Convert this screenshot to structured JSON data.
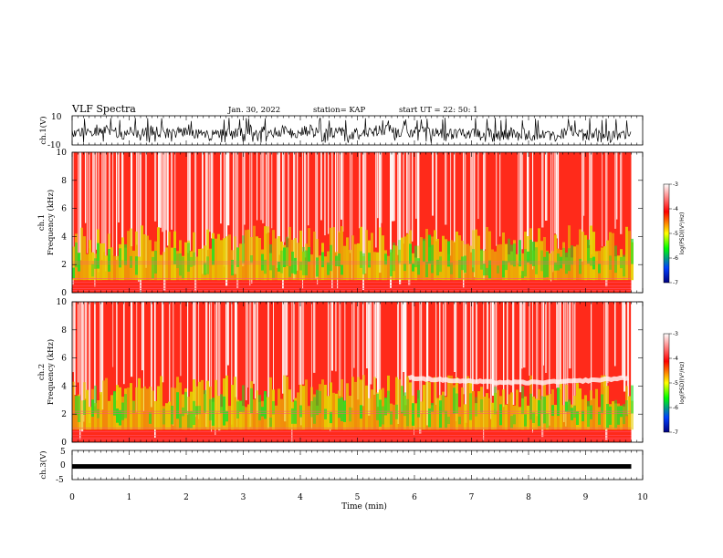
{
  "header": {
    "title": "VLF Spectra",
    "date": "Jan. 30, 2022",
    "station": "station= KAP",
    "start": "start  UT =   22: 50: 1"
  },
  "chart_data": [
    {
      "type": "line",
      "name": "ch1-waveform",
      "ylabel": "ch.1(V)",
      "ylim": [
        -10,
        10
      ],
      "yticks": [
        "10",
        "-10"
      ],
      "xlim": [
        0,
        10
      ]
    },
    {
      "type": "heatmap",
      "name": "ch1-spectrogram",
      "ylabel": "ch.1\nFrequency  (kHz)",
      "ylabel_lines": [
        "ch.1",
        "Frequency  (kHz)"
      ],
      "ylim": [
        0,
        10
      ],
      "yticks": [
        "0",
        "2",
        "4",
        "6",
        "8",
        "10"
      ],
      "xlim": [
        0,
        10
      ],
      "data_end_min": 9.8,
      "colorbar": {
        "label": "log(PSD)(V²/Hz)",
        "range": [
          -7,
          -3
        ],
        "ticks": [
          "-3",
          "-4",
          "-5",
          "-6",
          "-7"
        ],
        "colors": [
          "#000080",
          "#0050ff",
          "#00ff00",
          "#ffff00",
          "#ff0000",
          "#ffffff"
        ]
      }
    },
    {
      "type": "heatmap",
      "name": "ch2-spectrogram",
      "ylabel": "ch.2\nFrequency  (kHz)",
      "ylabel_lines": [
        "ch.2",
        "Frequency  (kHz)"
      ],
      "ylim": [
        0,
        10
      ],
      "yticks": [
        "0",
        "2",
        "4",
        "6",
        "8",
        "10"
      ],
      "xlim": [
        0,
        10
      ],
      "data_end_min": 9.8,
      "colorbar": {
        "label": "log(PSD)(V²/Hz)",
        "range": [
          -7,
          -3
        ],
        "ticks": [
          "-3",
          "-4",
          "-5",
          "-6",
          "-7"
        ],
        "colors": [
          "#000080",
          "#0050ff",
          "#00ff00",
          "#ffff00",
          "#ff0000",
          "#ffffff"
        ]
      }
    },
    {
      "type": "line",
      "name": "ch3-waveform",
      "ylabel": "ch.3(V)",
      "ylim": [
        -5,
        5
      ],
      "yticks": [
        "5",
        "0",
        "-5"
      ],
      "xlim": [
        0,
        10
      ],
      "level": -0.5
    }
  ],
  "xaxis": {
    "label": "Time  (min)",
    "ticks": [
      "0",
      "1",
      "2",
      "3",
      "4",
      "5",
      "6",
      "7",
      "8",
      "9",
      "10"
    ]
  }
}
